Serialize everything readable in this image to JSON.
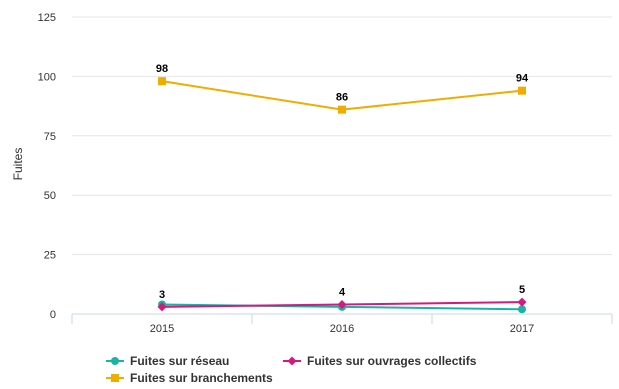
{
  "chart_data": {
    "type": "line",
    "title": "",
    "xlabel": "",
    "ylabel": "Fuites",
    "ylim": [
      0,
      125
    ],
    "yticks": [
      0,
      25,
      50,
      75,
      100,
      125
    ],
    "categories": [
      "2015",
      "2016",
      "2017"
    ],
    "grid": "horizontal",
    "legend_position": "bottom-left",
    "series": [
      {
        "name": "Fuites sur réseau",
        "values": [
          4,
          3,
          2
        ],
        "color": "#1bb3a6",
        "marker": "circle",
        "show_labels": false
      },
      {
        "name": "Fuites sur ouvrages collectifs",
        "values": [
          3,
          4,
          5
        ],
        "color": "#d6197f",
        "marker": "diamond",
        "show_labels": true
      },
      {
        "name": "Fuites sur branchements",
        "values": [
          98,
          86,
          94
        ],
        "color": "#f0ad00",
        "marker": "square",
        "show_labels": true
      }
    ]
  }
}
